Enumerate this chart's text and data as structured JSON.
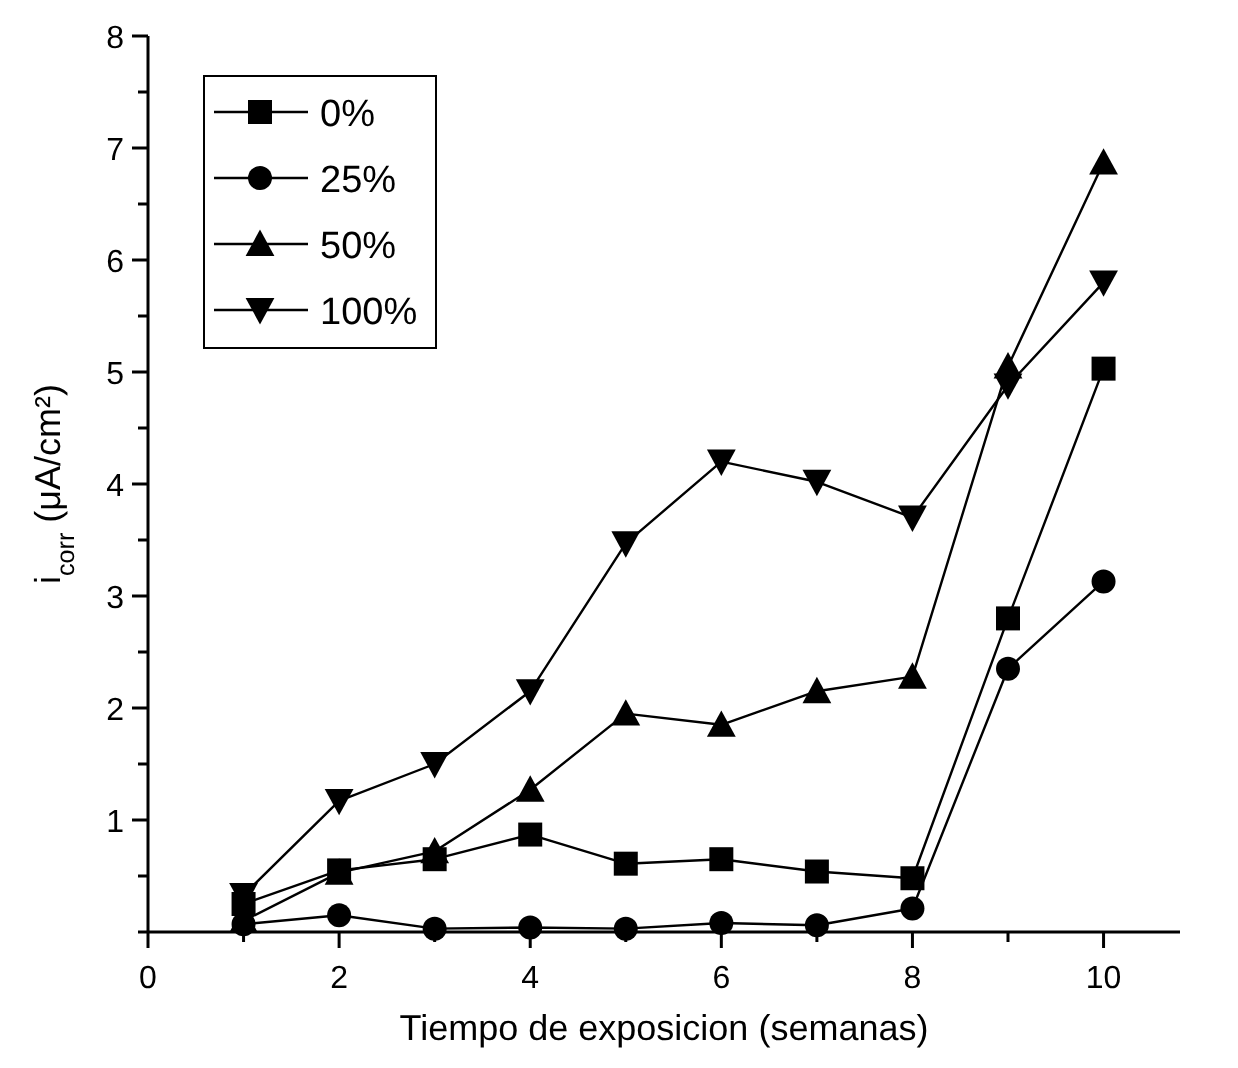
{
  "chart_data": {
    "type": "line",
    "xlabel": "Tiempo de exposicion (semanas)",
    "ylabel": "i$_{corr}$ (μA/cm²)",
    "xlim": [
      0,
      10.8
    ],
    "xticks": [
      0,
      {
        "value": 1,
        "label": null
      },
      2,
      {
        "value": 3,
        "label": null
      },
      4,
      {
        "value": 5,
        "label": null
      },
      6,
      {
        "value": 7,
        "label": null
      },
      8,
      {
        "value": 9,
        "label": null
      },
      10
    ],
    "ylim": [
      0,
      8
    ],
    "yticks": [
      {
        "value": 0,
        "label": null
      },
      {
        "value": 0.5,
        "label": null
      },
      1,
      {
        "value": 1.5,
        "label": null
      },
      2,
      {
        "value": 2.5,
        "label": null
      },
      3,
      {
        "value": 3.5,
        "label": null
      },
      4,
      {
        "value": 4.5,
        "label": null
      },
      5,
      {
        "value": 5.5,
        "label": null
      },
      6,
      {
        "value": 6.5,
        "label": null
      },
      7,
      {
        "value": 7.5,
        "label": null
      },
      8
    ],
    "x": [
      1,
      2,
      3,
      4,
      5,
      6,
      7,
      8,
      9,
      10
    ],
    "grid": false,
    "legend": "top left",
    "line_style": "solid",
    "series": [
      {
        "name": "0%",
        "color": "#000000",
        "marker": "square",
        "values": [
          0.25,
          0.55,
          0.65,
          0.87,
          0.61,
          0.65,
          0.54,
          0.48,
          2.8,
          5.03
        ]
      },
      {
        "name": "25%",
        "color": "#000000",
        "marker": "circle",
        "values": [
          0.07,
          0.15,
          0.03,
          0.04,
          0.03,
          0.08,
          0.06,
          0.21,
          2.35,
          3.13
        ]
      },
      {
        "name": "50%",
        "color": "#000000",
        "marker": "triangle",
        "values": [
          0.1,
          0.53,
          0.72,
          1.27,
          1.95,
          1.85,
          2.15,
          2.28,
          5.05,
          6.87
        ]
      },
      {
        "name": "100%",
        "color": "#000000",
        "marker": "triangle-down",
        "values": [
          0.33,
          1.17,
          1.5,
          2.15,
          3.47,
          4.2,
          4.02,
          3.7,
          4.88,
          5.8
        ]
      }
    ]
  }
}
